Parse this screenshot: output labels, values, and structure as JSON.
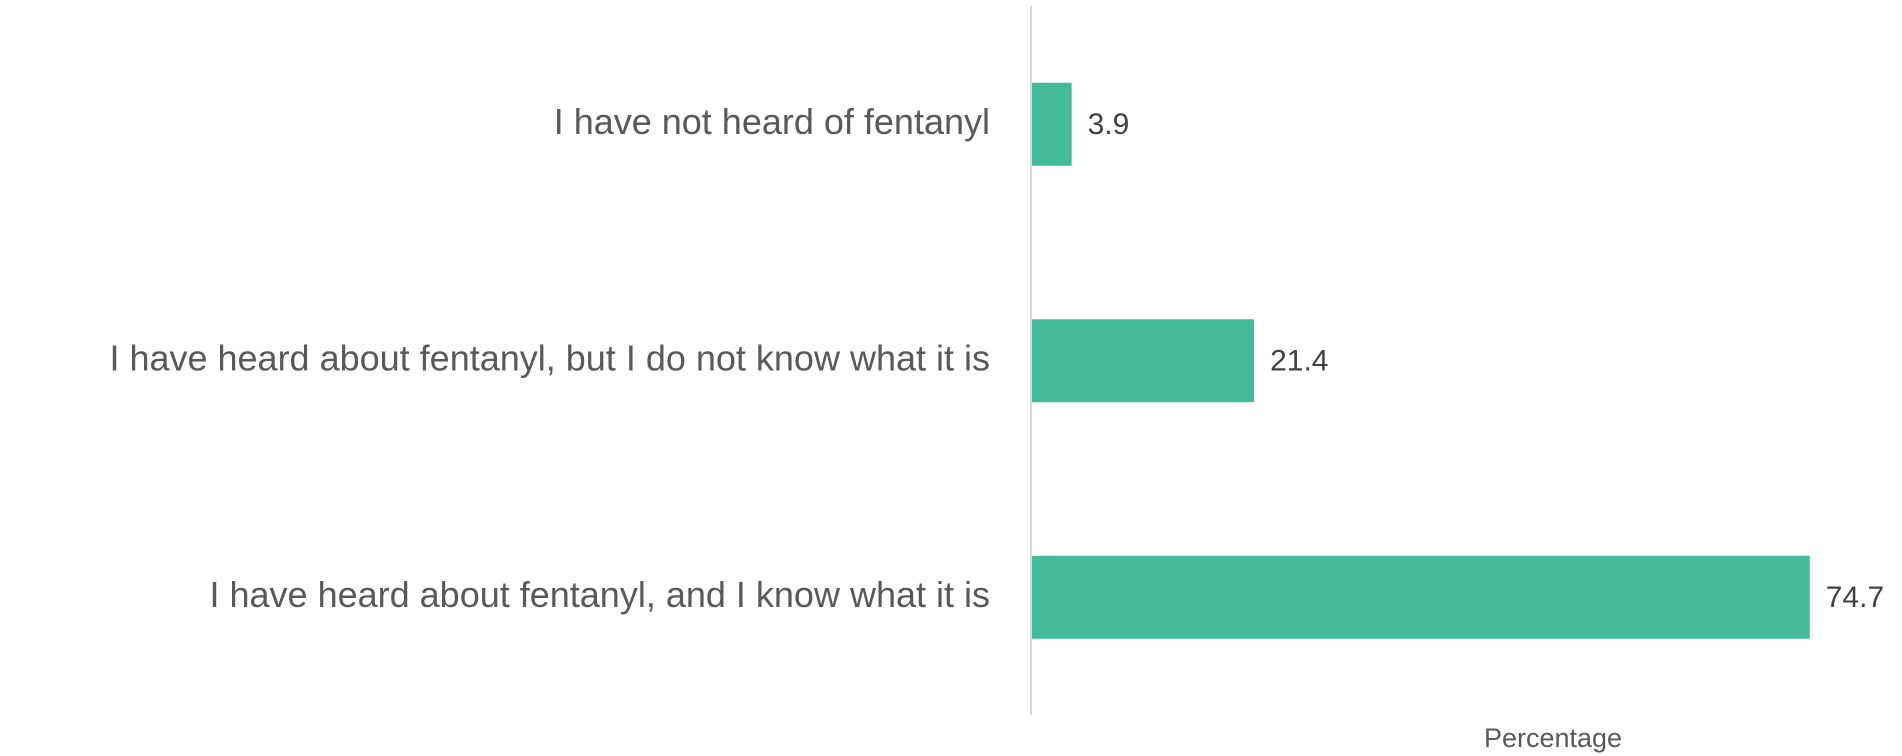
{
  "chart_data": {
    "type": "bar",
    "orientation": "horizontal",
    "categories": [
      "I have not heard of fentanyl",
      "I have heard about fentanyl, but I do not know what it is",
      "I have heard about fentanyl, and I know what it is"
    ],
    "values": [
      3.9,
      21.4,
      74.7
    ],
    "color": "#43bb98",
    "x_label": "Percentage",
    "xlim": [
      0,
      80
    ]
  }
}
